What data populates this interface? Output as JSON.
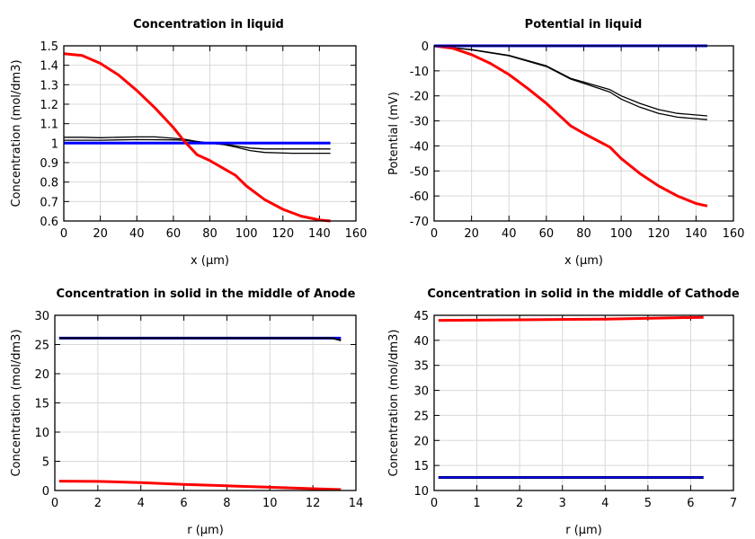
{
  "chart_data": [
    {
      "type": "line",
      "title": "Concentration in liquid",
      "xlabel": "x (μm)",
      "ylabel": "Concentration (mol/dm3)",
      "xlim": [
        0,
        160
      ],
      "ylim": [
        0.6,
        1.5
      ],
      "xticks": [
        0,
        20,
        40,
        60,
        80,
        100,
        120,
        140,
        160
      ],
      "yticks": [
        0.6,
        0.7,
        0.8,
        0.9,
        1,
        1.1,
        1.2,
        1.3,
        1.4,
        1.5
      ],
      "grid": true,
      "series": [
        {
          "color": "#000000",
          "width": 1.3,
          "points": [
            [
              0,
              1.03
            ],
            [
              10,
              1.03
            ],
            [
              20,
              1.028
            ],
            [
              30,
              1.03
            ],
            [
              40,
              1.032
            ],
            [
              50,
              1.032
            ],
            [
              60,
              1.025
            ],
            [
              66,
              1.02
            ],
            [
              72,
              1.01
            ],
            [
              80,
              1.0
            ],
            [
              88,
              0.995
            ],
            [
              95,
              0.985
            ],
            [
              102,
              0.975
            ],
            [
              110,
              0.97
            ],
            [
              125,
              0.97
            ],
            [
              146,
              0.97
            ]
          ]
        },
        {
          "color": "#000000",
          "width": 1.3,
          "points": [
            [
              0,
              1.015
            ],
            [
              20,
              1.015
            ],
            [
              40,
              1.018
            ],
            [
              60,
              1.017
            ],
            [
              66,
              1.015
            ],
            [
              72,
              1.008
            ],
            [
              80,
              1.0
            ],
            [
              88,
              0.992
            ],
            [
              95,
              0.978
            ],
            [
              102,
              0.962
            ],
            [
              110,
              0.952
            ],
            [
              125,
              0.948
            ],
            [
              146,
              0.948
            ]
          ]
        },
        {
          "color": "#0000ff",
          "width": 3,
          "points": [
            [
              0,
              1.0
            ],
            [
              146,
              1.0
            ]
          ]
        },
        {
          "color": "#ff0000",
          "width": 3,
          "points": [
            [
              0,
              1.46
            ],
            [
              10,
              1.45
            ],
            [
              20,
              1.41
            ],
            [
              30,
              1.35
            ],
            [
              40,
              1.27
            ],
            [
              50,
              1.18
            ],
            [
              60,
              1.08
            ],
            [
              66,
              1.01
            ],
            [
              73,
              0.94
            ],
            [
              80,
              0.91
            ],
            [
              94,
              0.835
            ],
            [
              100,
              0.78
            ],
            [
              110,
              0.71
            ],
            [
              120,
              0.66
            ],
            [
              130,
              0.625
            ],
            [
              140,
              0.605
            ],
            [
              146,
              0.6
            ]
          ]
        }
      ]
    },
    {
      "type": "line",
      "title": "Potential in liquid",
      "xlabel": "x (μm)",
      "ylabel": "Potential (mV)",
      "xlim": [
        0,
        160
      ],
      "ylim": [
        -70,
        0
      ],
      "xticks": [
        0,
        20,
        40,
        60,
        80,
        100,
        120,
        140,
        160
      ],
      "yticks": [
        -70,
        -60,
        -50,
        -40,
        -30,
        -20,
        -10,
        0
      ],
      "grid": true,
      "series": [
        {
          "color": "#000000",
          "width": 1.3,
          "points": [
            [
              0,
              0
            ],
            [
              20,
              -1.5
            ],
            [
              40,
              -3.8
            ],
            [
              60,
              -8
            ],
            [
              73,
              -13
            ],
            [
              80,
              -14.5
            ],
            [
              94,
              -17.5
            ],
            [
              100,
              -20
            ],
            [
              110,
              -23
            ],
            [
              120,
              -25.5
            ],
            [
              130,
              -27
            ],
            [
              146,
              -28
            ]
          ]
        },
        {
          "color": "#000000",
          "width": 1.3,
          "points": [
            [
              0,
              0
            ],
            [
              20,
              -1.6
            ],
            [
              40,
              -4
            ],
            [
              60,
              -8.3
            ],
            [
              73,
              -13.3
            ],
            [
              80,
              -15
            ],
            [
              94,
              -18.5
            ],
            [
              100,
              -21.3
            ],
            [
              110,
              -24.5
            ],
            [
              120,
              -27
            ],
            [
              130,
              -28.5
            ],
            [
              146,
              -29.5
            ]
          ]
        },
        {
          "color": "#ff0000",
          "width": 3,
          "points": [
            [
              0,
              0
            ],
            [
              10,
              -1
            ],
            [
              20,
              -3.5
            ],
            [
              30,
              -7
            ],
            [
              40,
              -11.5
            ],
            [
              50,
              -17
            ],
            [
              60,
              -23
            ],
            [
              73,
              -32
            ],
            [
              80,
              -35
            ],
            [
              94,
              -40.5
            ],
            [
              100,
              -45
            ],
            [
              110,
              -51
            ],
            [
              120,
              -56
            ],
            [
              130,
              -60
            ],
            [
              140,
              -63
            ],
            [
              146,
              -64
            ]
          ]
        },
        {
          "color": "#0000ff",
          "width": 3,
          "points": [
            [
              0,
              0
            ],
            [
              146,
              0
            ]
          ]
        }
      ]
    },
    {
      "type": "line",
      "title": "Concentration in solid in the middle of Anode",
      "xlabel": "r (μm)",
      "ylabel": "Concentration (mol/dm3)",
      "xlim": [
        0,
        14
      ],
      "ylim": [
        0,
        30
      ],
      "xticks": [
        0,
        2,
        4,
        6,
        8,
        10,
        12,
        14
      ],
      "yticks": [
        0,
        5,
        10,
        15,
        20,
        25,
        30
      ],
      "grid": true,
      "series": [
        {
          "color": "#0000ff",
          "width": 3,
          "points": [
            [
              0.2,
              26.1
            ],
            [
              13.3,
              26.1
            ]
          ]
        },
        {
          "color": "#000000",
          "width": 2,
          "points": [
            [
              0.2,
              26.1
            ],
            [
              12.9,
              26.1
            ],
            [
              13.3,
              25.7
            ]
          ]
        },
        {
          "color": "#ff0000",
          "width": 3,
          "points": [
            [
              0.2,
              1.6
            ],
            [
              2,
              1.55
            ],
            [
              4,
              1.35
            ],
            [
              6,
              1.05
            ],
            [
              8,
              0.8
            ],
            [
              10,
              0.55
            ],
            [
              12,
              0.3
            ],
            [
              13.3,
              0.15
            ]
          ]
        }
      ]
    },
    {
      "type": "line",
      "title": "Concentration in solid in the middle of Cathode",
      "xlabel": "r (μm)",
      "ylabel": "Concentration (mol/dm3)",
      "xlim": [
        0,
        7
      ],
      "ylim": [
        10,
        45
      ],
      "xticks": [
        0,
        1,
        2,
        3,
        4,
        5,
        6,
        7
      ],
      "yticks": [
        10,
        15,
        20,
        25,
        30,
        35,
        40,
        45
      ],
      "grid": true,
      "series": [
        {
          "color": "#000000",
          "width": 3,
          "points": [
            [
              0.1,
              12.6
            ],
            [
              6.3,
              12.6
            ]
          ]
        },
        {
          "color": "#0000ff",
          "width": 2,
          "points": [
            [
              0.1,
              12.6
            ],
            [
              6.3,
              12.6
            ]
          ]
        },
        {
          "color": "#ff0000",
          "width": 3,
          "points": [
            [
              0.1,
              44.0
            ],
            [
              2,
              44.1
            ],
            [
              4,
              44.25
            ],
            [
              6.3,
              44.6
            ]
          ]
        }
      ]
    }
  ]
}
